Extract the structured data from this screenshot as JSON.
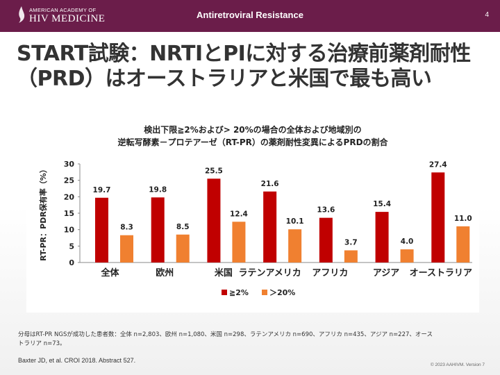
{
  "header": {
    "logo_line1": "AMERICAN ACADEMY OF",
    "logo_line2": "HIV MEDICINE",
    "topic": "Antiretroviral Resistance",
    "page_number": "4"
  },
  "title": "START試験：NRTIとPIに対する治療前薬剤耐性（PRD）はオーストラリアと米国で最も高い",
  "chart_data": {
    "type": "bar",
    "title": "検出下限≧2%および> 20%の場合の全体および地域別の\n逆転写酵素－プロテアーゼ（RT-PR）の薬剤耐性変異によるPRDの割合",
    "ylabel": "RT-PR：PDR保有率（%）",
    "ylim": [
      0,
      30
    ],
    "yticks": [
      "0",
      "5",
      "10",
      "15",
      "20",
      "25",
      "30"
    ],
    "categories": [
      "全体",
      "欧州",
      "米国",
      "ラテンアメリカ",
      "アフリカ",
      "アジア",
      "オーストラリア"
    ],
    "series": [
      {
        "name": "≧2%",
        "color": "#c00000",
        "values": [
          19.7,
          19.8,
          25.5,
          21.6,
          13.6,
          15.4,
          27.4
        ],
        "labels": [
          "19.7",
          "19.8",
          "25.5",
          "21.6",
          "13.6",
          "15.4",
          "27.4"
        ]
      },
      {
        "name": "＞20%",
        "color": "#f08030",
        "values": [
          8.3,
          8.5,
          12.4,
          10.1,
          3.7,
          4.0,
          11.0
        ],
        "labels": [
          "8.3",
          "8.5",
          "12.4",
          "10.1",
          "3.7",
          "4.0",
          "11.0"
        ]
      }
    ],
    "legend_position": "bottom"
  },
  "footnote": "分母はRT-PR NGSが成功した患者数：全体 n=2,803、欧州 n=1,080、米国 n=298、ラテンアメリカ n=690、アフリカ n=435、アジア n=227、オーストラリア n=73。",
  "citation": "Baxter JD, et al. CROI 2018. Abstract 527.",
  "copyright": "© 2023 AAHIVM. Version 7"
}
